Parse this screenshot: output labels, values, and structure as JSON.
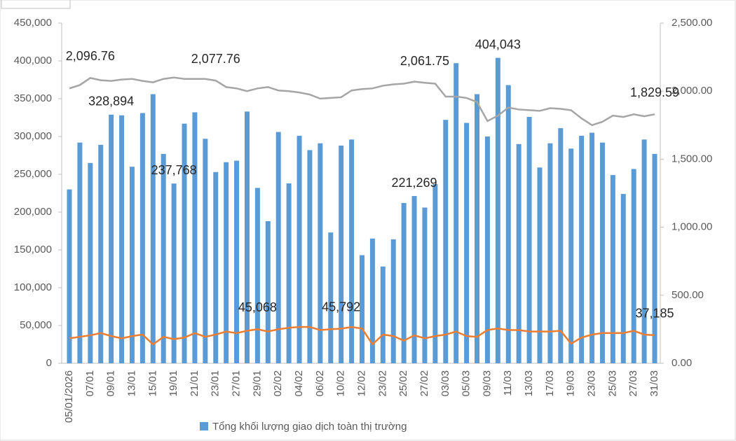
{
  "chart_data": {
    "type": "bar_line",
    "categories": [
      "05/01/2026",
      null,
      "07/01",
      null,
      "09/01",
      null,
      "13/01",
      null,
      "15/01",
      null,
      "19/01",
      null,
      "21/01",
      null,
      "23/01",
      null,
      "27/01",
      null,
      "29/01",
      null,
      "02/02",
      null,
      "04/02",
      null,
      "06/02",
      null,
      "10/02",
      null,
      "12/02",
      null,
      "23/02",
      null,
      "25/02",
      null,
      "27/02",
      null,
      "03/03",
      null,
      "05/03",
      null,
      "09/03",
      null,
      "11/03",
      null,
      "13/03",
      null,
      "17/03",
      null,
      "19/03",
      null,
      "23/03",
      null,
      "25/03",
      null,
      "27/03",
      null,
      "31/03"
    ],
    "series": [
      {
        "name": "Tổng khối lượng giao dịch toàn thị trường",
        "color": "#5b9bd5",
        "kind": "bar",
        "values": [
          230000,
          292000,
          265000,
          289000,
          328894,
          328000,
          260000,
          331000,
          356000,
          277000,
          237768,
          317000,
          332000,
          297000,
          253000,
          266000,
          268000,
          333000,
          232000,
          188000,
          306000,
          238000,
          301000,
          282000,
          291000,
          173000,
          288000,
          296000,
          143000,
          165000,
          128000,
          164000,
          212000,
          221269,
          206000,
          237000,
          322000,
          397000,
          318000,
          356000,
          300000,
          404043,
          368000,
          290000,
          326000,
          259000,
          291000,
          311000,
          284000,
          301000,
          305000,
          292000,
          249000,
          224000,
          257000,
          296000,
          277000
        ],
        "value_labels": [
          null,
          null,
          null,
          null,
          "328,894",
          null,
          null,
          null,
          null,
          null,
          "237,768",
          null,
          null,
          null,
          null,
          null,
          null,
          null,
          null,
          null,
          null,
          null,
          null,
          null,
          null,
          null,
          null,
          null,
          null,
          null,
          null,
          null,
          null,
          "221,269",
          null,
          null,
          null,
          null,
          null,
          null,
          null,
          "404,043",
          null,
          null,
          null,
          null,
          null,
          null,
          null,
          null,
          null,
          null,
          null,
          null,
          null,
          null,
          null
        ]
      },
      {
        "color": "#ed7d31",
        "kind": "line",
        "values": [
          33000,
          35000,
          37000,
          40000,
          36000,
          33000,
          36000,
          38000,
          25000,
          35000,
          32000,
          34000,
          40000,
          35000,
          38000,
          42000,
          40000,
          43000,
          45068,
          42000,
          45000,
          47000,
          48000,
          48000,
          44000,
          45000,
          45792,
          48000,
          46000,
          25000,
          38000,
          36000,
          30000,
          37000,
          33000,
          36000,
          38000,
          42000,
          36000,
          35000,
          44000,
          46000,
          44000,
          44000,
          42000,
          42000,
          42000,
          43000,
          26000,
          34000,
          38000,
          40000,
          40000,
          40000,
          43000,
          38000,
          37185
        ],
        "value_labels": [
          null,
          null,
          null,
          null,
          null,
          null,
          null,
          null,
          null,
          null,
          null,
          null,
          null,
          null,
          null,
          null,
          null,
          null,
          "45,068",
          null,
          null,
          null,
          null,
          null,
          null,
          null,
          "45,792",
          null,
          null,
          null,
          null,
          null,
          null,
          null,
          null,
          null,
          null,
          null,
          null,
          null,
          null,
          null,
          null,
          null,
          null,
          null,
          null,
          null,
          null,
          null,
          null,
          null,
          null,
          null,
          null,
          null,
          "37,185"
        ]
      },
      {
        "color": "#a5a5a5",
        "kind": "line",
        "axis": "y2",
        "values": [
          2020,
          2045,
          2096.76,
          2080,
          2075,
          2085,
          2090,
          2075,
          2065,
          2090,
          2100,
          2090,
          2090,
          2090,
          2077.76,
          2030,
          2020,
          2000,
          2020,
          2030,
          2005,
          2000,
          1990,
          1975,
          1945,
          1950,
          1955,
          2005,
          2015,
          2020,
          2040,
          2050,
          2055,
          2070,
          2061.75,
          2055,
          1960,
          1960,
          1950,
          1920,
          1780,
          1820,
          1880,
          1865,
          1860,
          1855,
          1875,
          1870,
          1860,
          1800,
          1750,
          1775,
          1820,
          1810,
          1830,
          1815,
          1829.59
        ],
        "value_labels": [
          null,
          null,
          "2,096.76",
          null,
          null,
          null,
          null,
          null,
          null,
          null,
          null,
          null,
          null,
          null,
          "2,077.76",
          null,
          null,
          null,
          null,
          null,
          null,
          null,
          null,
          null,
          null,
          null,
          null,
          null,
          null,
          null,
          null,
          null,
          null,
          null,
          "2,061.75",
          null,
          null,
          null,
          null,
          null,
          null,
          null,
          null,
          null,
          null,
          null,
          null,
          null,
          null,
          null,
          null,
          null,
          null,
          null,
          null,
          null,
          "1,829.59"
        ]
      }
    ],
    "ylim": [
      0,
      450000
    ],
    "yticks": [
      {
        "value": 0,
        "label": "0"
      },
      {
        "value": 50000,
        "label": "50,000"
      },
      {
        "value": 100000,
        "label": "100,000"
      },
      {
        "value": 150000,
        "label": "150,000"
      },
      {
        "value": 200000,
        "label": "200,000"
      },
      {
        "value": 250000,
        "label": "250,000"
      },
      {
        "value": 300000,
        "label": "300,000"
      },
      {
        "value": 350000,
        "label": "350,000"
      },
      {
        "value": 400000,
        "label": "400,000"
      },
      {
        "value": 450000,
        "label": "450,000"
      }
    ],
    "y2lim": [
      0,
      2500
    ],
    "y2ticks": [
      {
        "value": 0,
        "label": "0.00"
      },
      {
        "value": 500,
        "label": "500.00"
      },
      {
        "value": 1000,
        "label": "1,000.00"
      },
      {
        "value": 1500,
        "label": "1,500.00"
      },
      {
        "value": 2000,
        "label": "2,000.00"
      },
      {
        "value": 2500,
        "label": "2,500.00"
      }
    ]
  }
}
